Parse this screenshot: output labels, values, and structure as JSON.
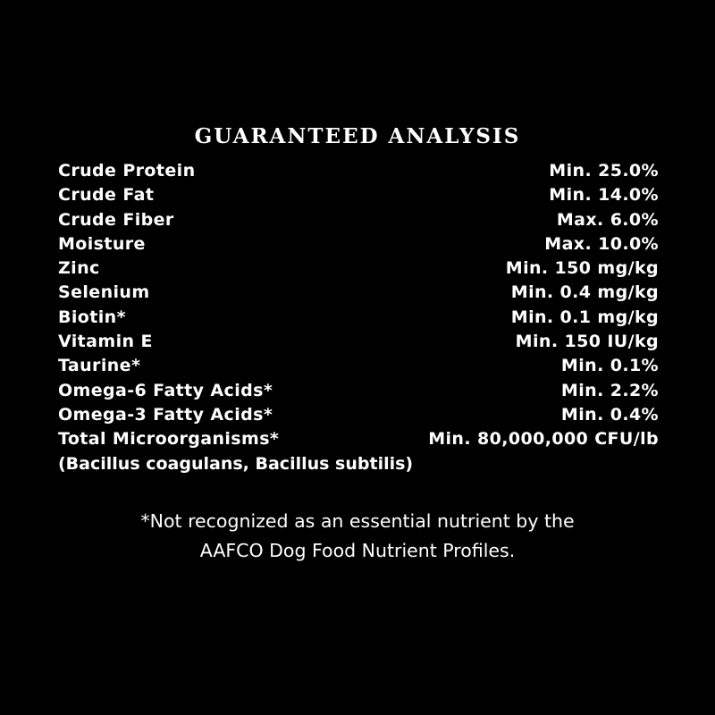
{
  "title": "GUARANTEED ANALYSIS",
  "rows": [
    {
      "label": "Crude Protein",
      "value": "Min. 25.0%"
    },
    {
      "label": "Crude Fat",
      "value": "Min. 14.0%"
    },
    {
      "label": "Crude Fiber",
      "value": "Max. 6.0%"
    },
    {
      "label": "Moisture",
      "value": "Max. 10.0%"
    },
    {
      "label": "Zinc",
      "value": "Min. 150 mg/kg"
    },
    {
      "label": "Selenium",
      "value": "Min. 0.4 mg/kg"
    },
    {
      "label": "Biotin*",
      "value": "Min. 0.1 mg/kg"
    },
    {
      "label": "Vitamin E",
      "value": "Min. 150 IU/kg"
    },
    {
      "label": "Taurine*",
      "value": "Min. 0.1%"
    },
    {
      "label": "Omega-6 Fatty Acids*",
      "value": "Min. 2.2%"
    },
    {
      "label": "Omega-3 Fatty Acids*",
      "value": "Min. 0.4%"
    },
    {
      "label": "Total Microorganisms*",
      "value": "Min. 80,000,000 CFU/lb"
    }
  ],
  "subnote": "(Bacillus coagulans, Bacillus subtilis)",
  "footnote": {
    "line1": "*Not recognized as an essential nutrient by the",
    "line2": "AAFCO Dog Food Nutrient Profiles."
  }
}
